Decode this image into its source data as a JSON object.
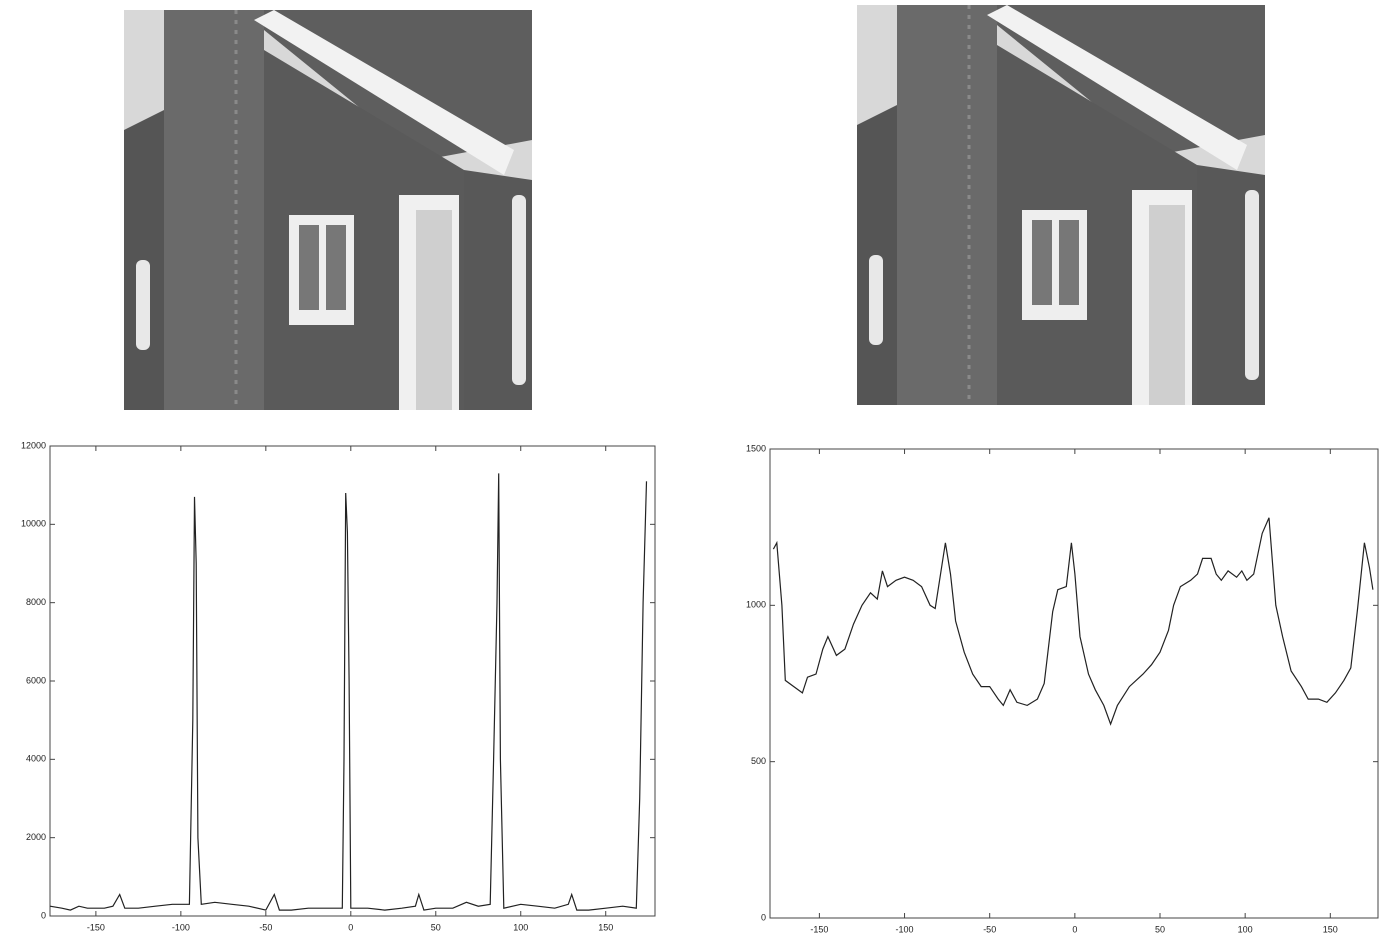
{
  "chart_data": [
    {
      "type": "line",
      "color": "#222",
      "xlim": [
        -177,
        179
      ],
      "ylim": [
        0,
        12000
      ],
      "xticks": [
        -150,
        -100,
        -50,
        0,
        50,
        100,
        150
      ],
      "yticks": [
        0,
        2000,
        4000,
        6000,
        8000,
        10000,
        12000
      ],
      "x": [
        -177,
        -170,
        -165,
        -160,
        -155,
        -150,
        -145,
        -140,
        -136,
        -133,
        -125,
        -115,
        -105,
        -95,
        -93,
        -92,
        -91,
        -90,
        -88,
        -80,
        -70,
        -60,
        -50,
        -45,
        -42,
        -35,
        -25,
        -15,
        -5,
        -4,
        -3,
        -2,
        -1,
        0,
        10,
        20,
        30,
        38,
        40,
        43,
        50,
        60,
        68,
        75,
        82,
        84,
        86,
        87,
        88,
        90,
        100,
        110,
        120,
        128,
        130,
        133,
        140,
        150,
        160,
        168,
        170,
        172,
        174
      ],
      "values": [
        250,
        200,
        150,
        250,
        200,
        200,
        200,
        250,
        550,
        200,
        200,
        250,
        300,
        300,
        5000,
        10700,
        9000,
        2000,
        300,
        350,
        300,
        250,
        150,
        550,
        150,
        150,
        200,
        200,
        200,
        4000,
        10800,
        9800,
        6000,
        200,
        200,
        150,
        200,
        250,
        550,
        150,
        200,
        200,
        350,
        250,
        300,
        4000,
        8000,
        11300,
        4000,
        200,
        300,
        250,
        200,
        300,
        550,
        150,
        150,
        200,
        250,
        200,
        3000,
        8000,
        11100
      ]
    },
    {
      "type": "line",
      "color": "#222",
      "xlim": [
        -179,
        178
      ],
      "ylim": [
        0,
        1500
      ],
      "xticks": [
        -150,
        -100,
        -50,
        0,
        50,
        100,
        150
      ],
      "yticks": [
        0,
        500,
        1000,
        1500
      ],
      "x": [
        -177,
        -175,
        -172,
        -170,
        -165,
        -160,
        -157,
        -152,
        -148,
        -145,
        -140,
        -135,
        -130,
        -125,
        -120,
        -116,
        -113,
        -110,
        -105,
        -100,
        -95,
        -90,
        -85,
        -82,
        -78,
        -76,
        -73,
        -70,
        -65,
        -60,
        -55,
        -50,
        -45,
        -42,
        -38,
        -34,
        -28,
        -22,
        -18,
        -13,
        -10,
        -5,
        -2,
        0,
        3,
        8,
        12,
        17,
        21,
        25,
        32,
        40,
        45,
        50,
        55,
        58,
        62,
        68,
        72,
        75,
        80,
        83,
        86,
        90,
        95,
        98,
        101,
        105,
        110,
        114,
        118,
        122,
        127,
        133,
        137,
        143,
        148,
        153,
        158,
        162,
        166,
        170,
        173,
        175
      ],
      "values": [
        1180,
        1200,
        1000,
        760,
        740,
        720,
        770,
        780,
        860,
        900,
        840,
        860,
        940,
        1000,
        1040,
        1020,
        1110,
        1060,
        1080,
        1090,
        1080,
        1060,
        1000,
        990,
        1130,
        1200,
        1100,
        950,
        850,
        780,
        740,
        740,
        700,
        680,
        730,
        690,
        680,
        700,
        750,
        980,
        1050,
        1060,
        1200,
        1100,
        900,
        780,
        730,
        680,
        620,
        680,
        740,
        780,
        810,
        850,
        920,
        1000,
        1060,
        1080,
        1100,
        1150,
        1150,
        1100,
        1080,
        1110,
        1090,
        1110,
        1080,
        1100,
        1230,
        1280,
        1000,
        900,
        790,
        740,
        700,
        700,
        690,
        720,
        760,
        800,
        990,
        1200,
        1120,
        1050
      ]
    }
  ]
}
